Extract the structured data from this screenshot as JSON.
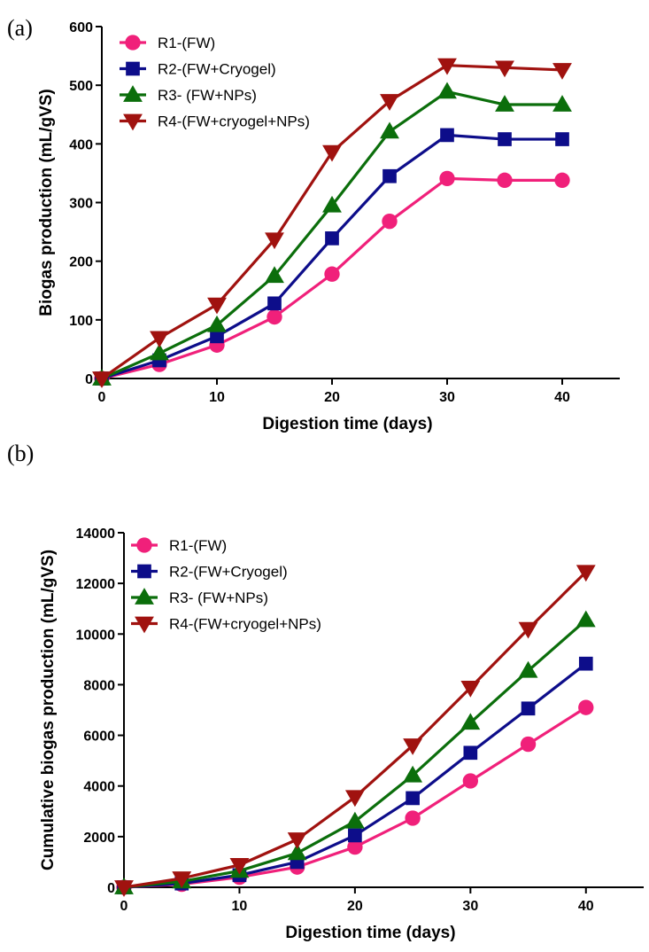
{
  "chart_data": [
    {
      "panel_label": "(a)",
      "type": "line",
      "title": "",
      "xlabel": "Digestion time (days)",
      "ylabel": "Biogas production (mL/gVS)",
      "x": [
        0,
        5,
        10,
        15,
        20,
        25,
        30,
        35,
        40
      ],
      "xlim": [
        0,
        45
      ],
      "ylim": [
        0,
        600
      ],
      "xticks": [
        0,
        10,
        20,
        30,
        40
      ],
      "yticks": [
        0,
        100,
        200,
        300,
        400,
        500,
        600
      ],
      "legend_position": "top-left",
      "grid": false,
      "series": [
        {
          "name": "R1-(FW)",
          "color": "#f0207a",
          "marker": "circle",
          "values": [
            0,
            24,
            57,
            105,
            178,
            268,
            341,
            338,
            338
          ]
        },
        {
          "name": "R2-(FW+Cryogel)",
          "color": "#0d0d8a",
          "marker": "square",
          "values": [
            0,
            31,
            72,
            128,
            239,
            345,
            415,
            408,
            408
          ]
        },
        {
          "name": "R3- (FW+NPs)",
          "color": "#0b6e0b",
          "marker": "triangle-up",
          "values": [
            0,
            43,
            91,
            175,
            295,
            421,
            489,
            467,
            467
          ]
        },
        {
          "name": "R4-(FW+cryogel+NPs)",
          "color": "#a0120f",
          "marker": "triangle-down",
          "values": [
            0,
            69,
            126,
            237,
            386,
            473,
            534,
            530,
            526
          ]
        }
      ]
    },
    {
      "panel_label": "(b)",
      "type": "line",
      "title": "",
      "xlabel": "Digestion time (days)",
      "ylabel": "Cumulative biogas production (mL/gVS)",
      "x": [
        0,
        5,
        10,
        15,
        20,
        25,
        30,
        35,
        40
      ],
      "xlim": [
        0,
        45
      ],
      "ylim": [
        0,
        14000
      ],
      "xticks": [
        0,
        10,
        20,
        30,
        40
      ],
      "yticks": [
        0,
        2000,
        4000,
        6000,
        8000,
        10000,
        12000,
        14000
      ],
      "legend_position": "top-left",
      "grid": false,
      "series": [
        {
          "name": "R1-(FW)",
          "color": "#f0207a",
          "marker": "circle",
          "values": [
            0,
            120,
            400,
            800,
            1590,
            2730,
            4200,
            5650,
            7100
          ]
        },
        {
          "name": "R2-(FW+Cryogel)",
          "color": "#0d0d8a",
          "marker": "square",
          "values": [
            0,
            150,
            480,
            1000,
            2050,
            3520,
            5310,
            7060,
            8830
          ]
        },
        {
          "name": "R3- (FW+NPs)",
          "color": "#0b6e0b",
          "marker": "triangle-up",
          "values": [
            0,
            230,
            650,
            1350,
            2600,
            4420,
            6500,
            8550,
            10550
          ]
        },
        {
          "name": "R4-(FW+cryogel+NPs)",
          "color": "#a0120f",
          "marker": "triangle-down",
          "values": [
            0,
            350,
            880,
            1890,
            3560,
            5600,
            7880,
            10200,
            12450
          ]
        }
      ]
    }
  ]
}
